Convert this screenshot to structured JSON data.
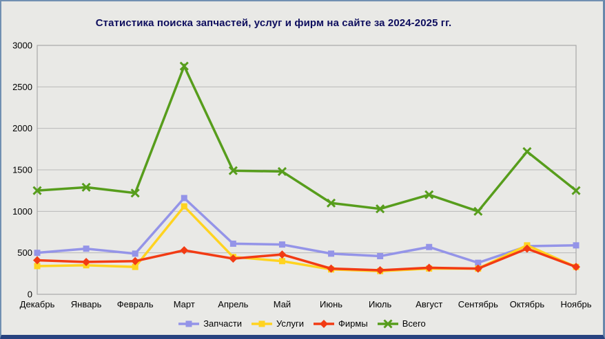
{
  "window": {
    "background": "#e9e9e6",
    "frame_color": "#7190b2",
    "bottom_bar_color": "#27427f"
  },
  "chart_data": {
    "type": "line",
    "title": "Статистика поиска запчастей, услуг и фирм на сайте за 2024-2025 гг.",
    "title_color": "#0e0e5e",
    "categories": [
      "Декабрь",
      "Январь",
      "Февраль",
      "Март",
      "Апрель",
      "Май",
      "Июнь",
      "Июль",
      "Август",
      "Сентябрь",
      "Октябрь",
      "Ноябрь"
    ],
    "series": [
      {
        "name": "Запчасти",
        "color": "#9494e8",
        "marker": "square",
        "values": [
          500,
          550,
          490,
          1160,
          610,
          600,
          490,
          460,
          570,
          380,
          580,
          590
        ]
      },
      {
        "name": "Услуги",
        "color": "#ffd320",
        "marker": "square",
        "values": [
          340,
          350,
          330,
          1060,
          450,
          400,
          300,
          280,
          310,
          310,
          590,
          330
        ]
      },
      {
        "name": "Фирмы",
        "color": "#f23b14",
        "marker": "diamond",
        "values": [
          410,
          390,
          400,
          530,
          430,
          480,
          310,
          290,
          320,
          310,
          550,
          330
        ]
      },
      {
        "name": "Всего",
        "color": "#579d1c",
        "marker": "x",
        "values": [
          1250,
          1290,
          1220,
          2750,
          1490,
          1480,
          1100,
          1030,
          1200,
          1000,
          1720,
          1250
        ]
      }
    ],
    "ylim": [
      0,
      3000
    ],
    "ytick_step": 500,
    "ytick_labels": [
      "0",
      "500",
      "1000",
      "1500",
      "2000",
      "2500",
      "3000"
    ],
    "grid": true,
    "grid_color": "#b9b9b9",
    "plot_border_color": "#a8a8a8",
    "axis_label_color": "#000000",
    "legend_position": "bottom"
  }
}
